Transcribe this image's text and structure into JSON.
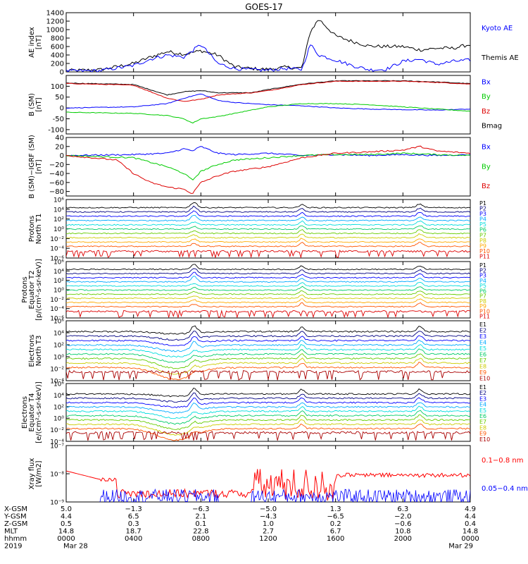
{
  "chart_data": {
    "type": "line",
    "title": "GOES-17",
    "panels": [
      {
        "id": "ae",
        "ylabel": [
          "AE index",
          "[nT]"
        ],
        "ylim": [
          0,
          1400
        ],
        "yticks": [
          "1400",
          "1200",
          "1000",
          "800",
          "600",
          "400",
          "200",
          "0"
        ],
        "legend": [
          {
            "text": "Kyoto AE",
            "color": "#0000ff"
          },
          {
            "text": "Themis AE",
            "color": "#000000"
          }
        ],
        "series": [
          {
            "name": "Themis AE",
            "color": "#000000",
            "x": [
              0,
              2,
              4,
              5,
              6,
              7,
              8,
              9,
              10,
              11,
              12,
              13,
              14,
              14.5,
              15,
              16,
              17,
              18,
              19,
              20,
              21,
              22,
              23,
              24
            ],
            "y": [
              30,
              50,
              200,
              350,
              480,
              420,
              500,
              400,
              120,
              80,
              60,
              110,
              90,
              950,
              1250,
              850,
              720,
              610,
              600,
              600,
              520,
              560,
              560,
              650
            ]
          },
          {
            "name": "Kyoto AE",
            "color": "#0000ff",
            "x": [
              0,
              2,
              4,
              5,
              6,
              7,
              8,
              9,
              10,
              11,
              12,
              13,
              14,
              14.5,
              15,
              16,
              17,
              18,
              19,
              20,
              21,
              22,
              23,
              24
            ],
            "y": [
              20,
              30,
              150,
              300,
              400,
              350,
              650,
              200,
              80,
              50,
              40,
              80,
              60,
              650,
              400,
              280,
              150,
              50,
              60,
              250,
              300,
              180,
              250,
              280
            ]
          }
        ]
      },
      {
        "id": "bsm",
        "ylabel": [
          "B (SM)",
          "[nT]"
        ],
        "ylim": [
          -120,
          150
        ],
        "yticks": [
          "100",
          "50",
          "0",
          "-50",
          "-100"
        ],
        "legend": [
          {
            "text": "Bx",
            "color": "#0000ff"
          },
          {
            "text": "By",
            "color": "#00cc00"
          },
          {
            "text": "Bz",
            "color": "#dd0000"
          },
          {
            "text": "Bmag",
            "color": "#000000"
          }
        ],
        "series": [
          {
            "name": "Bmag",
            "color": "#000000",
            "x": [
              0,
              4,
              6,
              7,
              8,
              9,
              10,
              11,
              12,
              14,
              16,
              18,
              20,
              22,
              24
            ],
            "y": [
              115,
              108,
              60,
              75,
              80,
              70,
              70,
              70,
              85,
              110,
              125,
              125,
              125,
              120,
              112
            ]
          },
          {
            "name": "Bz",
            "color": "#dd0000",
            "x": [
              0,
              4,
              6,
              7,
              8,
              9,
              10,
              11,
              12,
              14,
              16,
              18,
              20,
              22,
              24
            ],
            "y": [
              113,
              105,
              45,
              30,
              40,
              60,
              65,
              70,
              80,
              108,
              123,
              123,
              123,
              118,
              110
            ]
          },
          {
            "name": "Bx",
            "color": "#0000ff",
            "x": [
              0,
              4,
              6,
              7,
              8,
              9,
              10,
              11,
              12,
              14,
              16,
              18,
              20,
              22,
              24
            ],
            "y": [
              0,
              5,
              20,
              45,
              65,
              35,
              25,
              20,
              15,
              10,
              0,
              -5,
              -8,
              -10,
              -5
            ]
          },
          {
            "name": "By",
            "color": "#00cc00",
            "x": [
              0,
              4,
              6,
              7,
              7.5,
              8,
              9,
              10,
              11,
              12,
              14,
              16,
              18,
              20,
              22,
              24
            ],
            "y": [
              -20,
              -25,
              -35,
              -50,
              -70,
              -50,
              -40,
              -25,
              -10,
              5,
              20,
              20,
              15,
              5,
              -5,
              -15
            ]
          }
        ]
      },
      {
        "id": "bsmigrf",
        "ylabel": [
          "B (SM)−IGRF (SM)",
          "[nT]"
        ],
        "ylim": [
          -90,
          40
        ],
        "yticks": [
          "40",
          "20",
          "0",
          "−20",
          "−40",
          "−60",
          "−80"
        ],
        "legend": [
          {
            "text": "Bx",
            "color": "#0000ff"
          },
          {
            "text": "By",
            "color": "#00cc00"
          },
          {
            "text": "Bz",
            "color": "#dd0000"
          }
        ],
        "series": [
          {
            "name": "Bx",
            "color": "#0000ff",
            "x": [
              0,
              4,
              6,
              7,
              7.5,
              8,
              9,
              10,
              12,
              14,
              16,
              18,
              20,
              22,
              24
            ],
            "y": [
              0,
              2,
              5,
              15,
              10,
              20,
              5,
              2,
              5,
              0,
              2,
              0,
              2,
              0,
              2
            ]
          },
          {
            "name": "By",
            "color": "#00cc00",
            "x": [
              0,
              4,
              5,
              6,
              7,
              7.5,
              8,
              9,
              10,
              12,
              14,
              16,
              18,
              20,
              22,
              24
            ],
            "y": [
              0,
              -5,
              -15,
              -25,
              -40,
              -55,
              -35,
              -20,
              -10,
              -5,
              0,
              2,
              2,
              5,
              2,
              0
            ]
          },
          {
            "name": "Bz",
            "color": "#dd0000",
            "x": [
              0,
              3,
              4,
              5,
              6,
              7,
              7.5,
              8,
              9,
              10,
              12,
              14,
              16,
              18,
              20,
              21,
              22,
              24
            ],
            "y": [
              0,
              -10,
              -40,
              -60,
              -70,
              -75,
              -85,
              -60,
              -45,
              -35,
              -25,
              -5,
              5,
              8,
              12,
              20,
              10,
              5
            ]
          }
        ]
      },
      {
        "id": "pn",
        "ylabel": [
          "Protons",
          "North T1"
        ],
        "log": true,
        "ylim_exp": [
          -7,
          6
        ],
        "yticks": [
          "10⁶",
          "10⁴",
          "10²",
          "10⁰",
          "10⁻²",
          "10⁻⁴",
          "10⁻⁶"
        ],
        "channels": [
          "P1",
          "P2",
          "P3",
          "P4",
          "P5",
          "P6",
          "P7",
          "P8",
          "P9",
          "P10",
          "P11"
        ],
        "channel_colors": [
          "#000000",
          "#000080",
          "#0000ff",
          "#00aaff",
          "#00dddd",
          "#00cc66",
          "#66cc00",
          "#cccc00",
          "#ffaa00",
          "#ff5500",
          "#dd0000"
        ]
      },
      {
        "id": "pe",
        "ylabel": [
          "Protons",
          "Equator T2",
          "[p/(cm²-s-sr-keV)]"
        ],
        "log": true,
        "ylim_exp": [
          -7,
          6
        ],
        "yticks": [
          "10⁶",
          "10⁴",
          "10²",
          "10⁰",
          "10⁻²",
          "10⁻⁴",
          "10⁻⁶"
        ],
        "channels": [
          "P1",
          "P2",
          "P3",
          "P4",
          "P5",
          "P6",
          "P7",
          "P8",
          "P9",
          "P10",
          "P11"
        ],
        "channel_colors": [
          "#000000",
          "#000080",
          "#0000ff",
          "#00aaff",
          "#00dddd",
          "#00cc66",
          "#66cc00",
          "#cccc00",
          "#ffaa00",
          "#ff5500",
          "#dd0000"
        ]
      },
      {
        "id": "en",
        "ylabel": [
          "Electrons",
          "North T3"
        ],
        "log": true,
        "ylim_exp": [
          -4,
          6
        ],
        "yticks": [
          "10⁶",
          "10⁴",
          "10²",
          "10⁰",
          "10⁻²",
          "10⁻⁴"
        ],
        "channels": [
          "E1",
          "E2",
          "E3",
          "E4",
          "E5",
          "E6",
          "E7",
          "E8",
          "E9",
          "E10"
        ],
        "channel_colors": [
          "#000000",
          "#000080",
          "#0000ff",
          "#00aaff",
          "#00dddd",
          "#00cc66",
          "#66cc00",
          "#cccc00",
          "#ff5500",
          "#aa0000"
        ]
      },
      {
        "id": "ee",
        "ylabel": [
          "Electrons",
          "Equator T4",
          "[e/(cm²-s-sr-keV)]"
        ],
        "log": true,
        "ylim_exp": [
          -4,
          6
        ],
        "yticks": [
          "10⁶",
          "10⁴",
          "10²",
          "10⁰",
          "10⁻²",
          "10⁻⁴"
        ],
        "channels": [
          "E1",
          "E2",
          "E3",
          "E4",
          "E5",
          "E6",
          "E7",
          "E8",
          "E9",
          "E10"
        ],
        "channel_colors": [
          "#000000",
          "#000080",
          "#0000ff",
          "#00aaff",
          "#00dddd",
          "#00cc66",
          "#66cc00",
          "#cccc00",
          "#ff5500",
          "#aa0000"
        ]
      },
      {
        "id": "xray",
        "ylabel": [
          "Xray flux",
          "[W/m2]"
        ],
        "log": true,
        "ylim_exp": [
          -9,
          -7
        ],
        "yticks": [
          "10⁻⁷",
          "10⁻⁸",
          "10⁻⁹"
        ],
        "legend": [
          {
            "text": "0.1−0.8 nm",
            "color": "#ff0000"
          },
          {
            "text": "0.05−0.4 nm",
            "color": "#0000ff"
          }
        ]
      }
    ],
    "x_axis": {
      "range_hours": [
        0,
        24
      ],
      "tick_hours": [
        0,
        4,
        8,
        12,
        16,
        20,
        24
      ],
      "row_labels": [
        "X-GSM",
        "Y-GSM",
        "Z-GSM",
        "MLT",
        "hhmm",
        "2019"
      ],
      "columns": [
        [
          "5.0",
          "4.4",
          "0.5",
          "14.8",
          "0000",
          "Mar 28"
        ],
        [
          "−1.3",
          "6.5",
          "0.3",
          "18.7",
          "0400",
          ""
        ],
        [
          "−6.3",
          "2.1",
          "0.1",
          "22.8",
          "0800",
          ""
        ],
        [
          "−5.0",
          "−4.3",
          "1.0",
          "2.7",
          "1200",
          ""
        ],
        [
          "1.3",
          "−6.5",
          "0.2",
          "6.7",
          "1600",
          ""
        ],
        [
          "6.3",
          "−2.0",
          "−0.6",
          "10.8",
          "2000",
          ""
        ],
        [
          "4.9",
          "4.4",
          "0.4",
          "14.8",
          "0000",
          "Mar 29"
        ]
      ]
    }
  }
}
